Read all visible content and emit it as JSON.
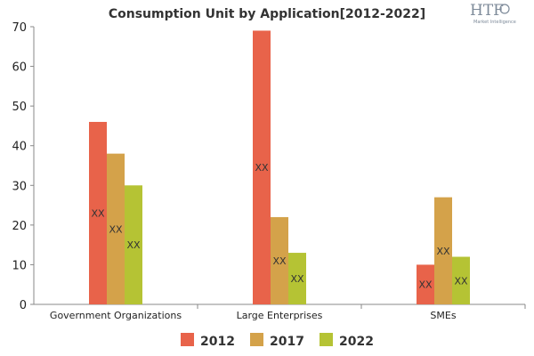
{
  "logo": {
    "text": "HTF",
    "subtext": "Market Intelligence"
  },
  "chart_data": {
    "type": "bar",
    "title": "Consumption Unit by  Application[2012-2022]",
    "xlabel": "",
    "ylabel": "",
    "ylim": [
      0,
      70
    ],
    "yticks": [
      0,
      10,
      20,
      30,
      40,
      50,
      60,
      70
    ],
    "categories": [
      "Government Organizations",
      "Large Enterprises",
      "SMEs"
    ],
    "series": [
      {
        "name": "2012",
        "color": "#e8634a",
        "values": [
          46,
          69,
          10
        ]
      },
      {
        "name": "2017",
        "color": "#d4a24a",
        "values": [
          38,
          22,
          27
        ]
      },
      {
        "name": "2022",
        "color": "#b5c334",
        "values": [
          30,
          13,
          12
        ]
      }
    ],
    "data_label": "XX",
    "grid": false,
    "legend_position": "bottom"
  }
}
